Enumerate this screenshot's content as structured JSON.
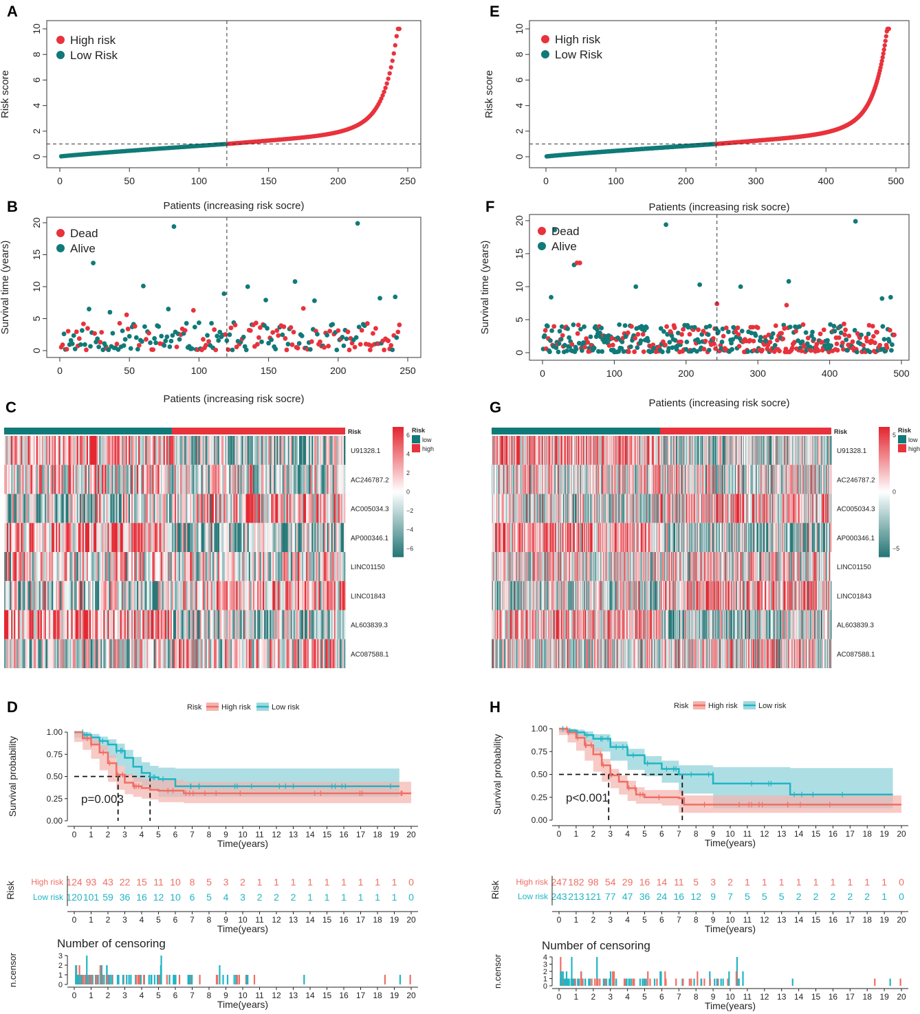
{
  "colors": {
    "high": "#e8323c",
    "low": "#107a78",
    "km_high": "#ef6e64",
    "km_low": "#20b5c4",
    "km_high_band": "#f4b3ae",
    "km_low_band": "#9fd8de",
    "heat_mid": "#ffffff"
  },
  "labels": {
    "patients_x": "Patients (increasing risk socre)",
    "risk_score_y": "Risk score",
    "survival_y": "Survival time (years)",
    "high_risk": "High risk",
    "low_risk": "Low Risk",
    "dead": "Dead",
    "alive": "Alive",
    "km_y": "Survival probability",
    "time_x": "Time(years)",
    "risk_word": "Risk",
    "high_risk_km": "High risk",
    "low_risk_km": "Low risk",
    "censor_title": "Number of censoring",
    "ncensor_y": "n.censor",
    "heat_risk": "Risk",
    "heat_low": "low",
    "heat_high": "high"
  },
  "panels": {
    "A": "A",
    "B": "B",
    "C": "C",
    "D": "D",
    "E": "E",
    "F": "F",
    "G": "G",
    "H": "H"
  },
  "chart_data": [
    {
      "panel": "A",
      "type": "scatter",
      "title": "",
      "xlabel": "Patients (increasing risk socre)",
      "ylabel": "Risk score",
      "xlim": [
        0,
        250
      ],
      "ylim": [
        0,
        10
      ],
      "n": 244,
      "cutoff_index": 120,
      "cutoff_value": 1.0,
      "xticks": [
        0,
        50,
        100,
        150,
        200,
        250
      ],
      "yticks": [
        0,
        2,
        4,
        6,
        8,
        10
      ],
      "legend": [
        "High risk",
        "Low Risk"
      ],
      "max_risk": 10
    },
    {
      "panel": "E",
      "type": "scatter",
      "title": "",
      "xlabel": "Patients (increasing risk socre)",
      "ylabel": "Risk score",
      "xlim": [
        0,
        500
      ],
      "ylim": [
        0,
        10
      ],
      "n": 490,
      "cutoff_index": 243,
      "cutoff_value": 1.0,
      "xticks": [
        0,
        100,
        200,
        300,
        400,
        500
      ],
      "yticks": [
        0,
        2,
        4,
        6,
        8,
        10
      ],
      "legend": [
        "High risk",
        "Low Risk"
      ],
      "max_risk": 10
    },
    {
      "panel": "B",
      "type": "scatter",
      "xlabel": "Patients (increasing risk socre)",
      "ylabel": "Survival time (years)",
      "xlim": [
        0,
        250
      ],
      "ylim": [
        0,
        20
      ],
      "n": 244,
      "cutoff_index": 120,
      "xticks": [
        0,
        50,
        100,
        150,
        200,
        250
      ],
      "yticks": [
        0,
        5,
        10,
        15,
        20
      ],
      "legend": [
        "Dead",
        "Alive"
      ],
      "highlights": [
        [
          24,
          13.7,
          "alive"
        ],
        [
          82,
          19.4,
          "alive"
        ],
        [
          214,
          19.9,
          "alive"
        ],
        [
          60,
          10.1,
          "alive"
        ],
        [
          135,
          10.0,
          "alive"
        ],
        [
          169,
          10.8,
          "alive"
        ],
        [
          118,
          8.9,
          "alive"
        ],
        [
          241,
          8.4,
          "alive"
        ],
        [
          230,
          8.2,
          "alive"
        ],
        [
          21,
          6.5,
          "alive"
        ],
        [
          36,
          6.0,
          "alive"
        ],
        [
          48,
          5.6,
          "dead"
        ],
        [
          78,
          6.5,
          "alive"
        ],
        [
          96,
          6.3,
          "dead"
        ],
        [
          175,
          6.6,
          "dead"
        ],
        [
          183,
          7.8,
          "alive"
        ],
        [
          148,
          7.9,
          "alive"
        ]
      ]
    },
    {
      "panel": "F",
      "type": "scatter",
      "xlabel": "Patients (increasing risk socre)",
      "ylabel": "Survival time (years)",
      "xlim": [
        0,
        500
      ],
      "ylim": [
        0,
        20
      ],
      "n": 490,
      "cutoff_index": 243,
      "xticks": [
        0,
        100,
        200,
        300,
        400,
        500
      ],
      "yticks": [
        0,
        5,
        10,
        15,
        20
      ],
      "legend": [
        "Dead",
        "Alive"
      ],
      "highlights": [
        [
          17,
          18.6,
          "alive"
        ],
        [
          44,
          13.3,
          "alive"
        ],
        [
          48,
          13.6,
          "dead"
        ],
        [
          52,
          13.6,
          "dead"
        ],
        [
          172,
          19.4,
          "alive"
        ],
        [
          436,
          19.9,
          "alive"
        ],
        [
          130,
          10.0,
          "alive"
        ],
        [
          219,
          10.3,
          "alive"
        ],
        [
          276,
          10.0,
          "alive"
        ],
        [
          343,
          10.8,
          "alive"
        ],
        [
          473,
          8.2,
          "alive"
        ],
        [
          485,
          8.4,
          "alive"
        ],
        [
          243,
          7.4,
          "dead"
        ],
        [
          340,
          7.2,
          "dead"
        ],
        [
          12,
          8.4,
          "alive"
        ]
      ]
    },
    {
      "panel": "C",
      "type": "heatmap",
      "genes": [
        "U91328.1",
        "AC246787.2",
        "AC005034.3",
        "AP000346.1",
        "LINC01150",
        "LINC01843",
        "AL603839.3",
        "AC087588.1"
      ],
      "n_low": 120,
      "n_high": 124,
      "scale_ticks": [
        "6",
        "4",
        "2",
        "0",
        "−2",
        "−4",
        "−6"
      ],
      "low_bias": [
        0.35,
        0.1,
        -0.2,
        0.45,
        0.05,
        -0.2,
        0.4,
        -0.15
      ],
      "high_bias": [
        -0.3,
        -0.1,
        0.2,
        -0.35,
        0.0,
        0.25,
        -0.3,
        0.1
      ]
    },
    {
      "panel": "G",
      "type": "heatmap",
      "genes": [
        "U91328.1",
        "AC246787.2",
        "AC005034.3",
        "AP000346.1",
        "LINC01150",
        "LINC01843",
        "AL603839.3",
        "AC087588.1"
      ],
      "n_low": 243,
      "n_high": 247,
      "scale_ticks": [
        "5",
        "0",
        "−5"
      ],
      "low_bias": [
        0.35,
        0.1,
        -0.15,
        0.45,
        0.0,
        -0.2,
        0.35,
        -0.1
      ],
      "high_bias": [
        -0.3,
        -0.1,
        0.2,
        -0.35,
        0.05,
        0.25,
        -0.3,
        0.1
      ]
    },
    {
      "panel": "D",
      "type": "line",
      "xlabel": "Time(years)",
      "ylabel": "Survival probability",
      "xlim": [
        0,
        20
      ],
      "ylim": [
        0,
        1
      ],
      "yticks": [
        "0.00",
        "0.25",
        "0.50",
        "0.75",
        "1.00"
      ],
      "p_value": "p=0.003",
      "median_high": 2.6,
      "median_low": 4.5,
      "series": [
        {
          "name": "High risk",
          "x": [
            0,
            0.5,
            1,
            1.5,
            2,
            2.5,
            3,
            3.5,
            4,
            4.5,
            5,
            6.5,
            7,
            20
          ],
          "values": [
            1.0,
            0.93,
            0.86,
            0.77,
            0.65,
            0.52,
            0.43,
            0.39,
            0.37,
            0.35,
            0.34,
            0.31,
            0.31,
            0.31
          ],
          "lower": [
            1.0,
            0.89,
            0.8,
            0.7,
            0.57,
            0.44,
            0.35,
            0.3,
            0.27,
            0.25,
            0.24,
            0.21,
            0.2,
            0.2
          ],
          "upper": [
            1.0,
            0.97,
            0.92,
            0.85,
            0.74,
            0.62,
            0.53,
            0.49,
            0.47,
            0.46,
            0.46,
            0.44,
            0.44,
            0.44
          ]
        },
        {
          "name": "Low risk",
          "x": [
            0,
            0.5,
            1,
            1.5,
            2,
            2.5,
            3,
            3.5,
            4,
            4.5,
            5,
            6,
            19.3
          ],
          "values": [
            1.0,
            0.97,
            0.94,
            0.9,
            0.86,
            0.79,
            0.71,
            0.61,
            0.54,
            0.49,
            0.47,
            0.39,
            0.39
          ],
          "lower": [
            1.0,
            0.94,
            0.9,
            0.85,
            0.79,
            0.71,
            0.62,
            0.51,
            0.44,
            0.39,
            0.36,
            0.27,
            0.27
          ],
          "upper": [
            1.0,
            1.0,
            0.98,
            0.95,
            0.92,
            0.87,
            0.8,
            0.72,
            0.66,
            0.62,
            0.6,
            0.59,
            0.59
          ]
        }
      ],
      "risk_table": {
        "times": [
          0,
          1,
          2,
          3,
          4,
          5,
          6,
          7,
          8,
          9,
          10,
          11,
          12,
          13,
          14,
          15,
          16,
          17,
          18,
          19,
          20
        ],
        "high": [
          "124",
          "93",
          "43",
          "22",
          "15",
          "11",
          "10",
          "8",
          "5",
          "3",
          "2",
          "1",
          "1",
          "1",
          "1",
          "1",
          "1",
          "1",
          "1",
          "1",
          "0"
        ],
        "low": [
          "120",
          "101",
          "59",
          "36",
          "16",
          "12",
          "10",
          "6",
          "5",
          "4",
          "3",
          "2",
          "2",
          "2",
          "1",
          "1",
          "1",
          "1",
          "1",
          "1",
          "0"
        ]
      },
      "censor_yticks": [
        "0",
        "1",
        "2",
        "3"
      ],
      "censor_max": 3
    },
    {
      "panel": "H",
      "type": "line",
      "xlabel": "Time(years)",
      "ylabel": "Survival probability",
      "xlim": [
        0,
        20
      ],
      "ylim": [
        0,
        1
      ],
      "yticks": [
        "0.00",
        "0.25",
        "0.50",
        "0.75",
        "1.00"
      ],
      "p_value": "p<0.001",
      "median_high": 2.9,
      "median_low": 7.2,
      "series": [
        {
          "name": "High risk",
          "x": [
            0,
            0.5,
            1,
            1.5,
            2,
            2.5,
            3,
            3.5,
            4,
            4.5,
            5,
            6,
            7,
            7.3,
            20
          ],
          "values": [
            1.0,
            0.96,
            0.9,
            0.82,
            0.72,
            0.6,
            0.49,
            0.42,
            0.35,
            0.28,
            0.25,
            0.25,
            0.24,
            0.17,
            0.17
          ],
          "lower": [
            1.0,
            0.93,
            0.85,
            0.76,
            0.65,
            0.53,
            0.42,
            0.35,
            0.28,
            0.21,
            0.18,
            0.18,
            0.16,
            0.08,
            0.08
          ],
          "upper": [
            1.0,
            0.99,
            0.94,
            0.88,
            0.79,
            0.67,
            0.56,
            0.49,
            0.43,
            0.36,
            0.33,
            0.33,
            0.33,
            0.27,
            0.27
          ]
        },
        {
          "name": "Low risk",
          "x": [
            0,
            0.5,
            1,
            1.5,
            2,
            3,
            4,
            5,
            6,
            7,
            9,
            13.5,
            19.5
          ],
          "values": [
            1.0,
            0.98,
            0.96,
            0.93,
            0.89,
            0.8,
            0.71,
            0.62,
            0.56,
            0.5,
            0.4,
            0.28,
            0.28
          ],
          "lower": [
            1.0,
            0.96,
            0.93,
            0.89,
            0.85,
            0.75,
            0.65,
            0.55,
            0.48,
            0.41,
            0.29,
            0.13,
            0.13
          ],
          "upper": [
            1.0,
            1.0,
            0.99,
            0.97,
            0.94,
            0.86,
            0.78,
            0.7,
            0.65,
            0.6,
            0.58,
            0.57,
            0.57
          ]
        }
      ],
      "risk_table": {
        "times": [
          0,
          1,
          2,
          3,
          4,
          5,
          6,
          7,
          8,
          9,
          10,
          11,
          12,
          13,
          14,
          15,
          16,
          17,
          18,
          19,
          20
        ],
        "high": [
          "247",
          "182",
          "98",
          "54",
          "29",
          "16",
          "14",
          "11",
          "5",
          "3",
          "2",
          "1",
          "1",
          "1",
          "1",
          "1",
          "1",
          "1",
          "1",
          "1",
          "0"
        ],
        "low": [
          "243",
          "213",
          "121",
          "77",
          "47",
          "36",
          "24",
          "16",
          "12",
          "9",
          "7",
          "5",
          "5",
          "5",
          "2",
          "2",
          "2",
          "2",
          "2",
          "1",
          "0"
        ]
      },
      "censor_yticks": [
        "0",
        "1",
        "2",
        "3",
        "4"
      ],
      "censor_max": 4
    }
  ]
}
